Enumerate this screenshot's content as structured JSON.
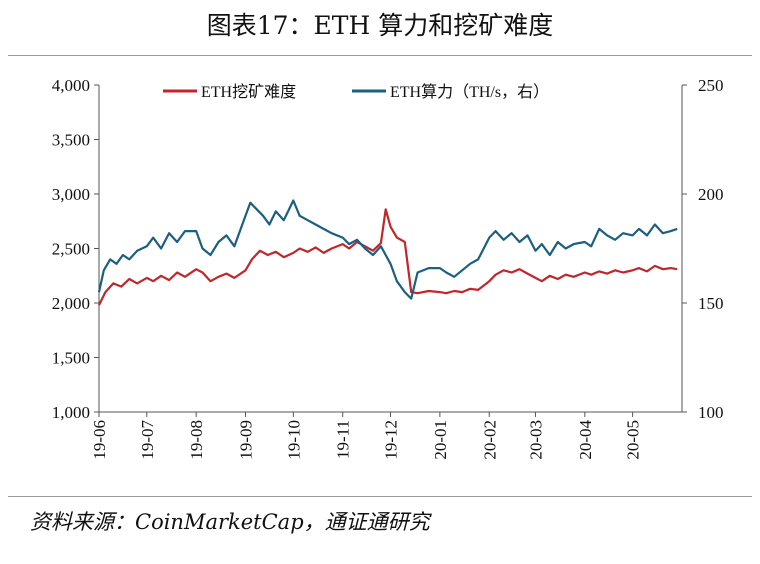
{
  "header": {
    "title": "图表17：ETH 算力和挖矿难度"
  },
  "footer": {
    "source": "资料来源：CoinMarketCap，通证通研究"
  },
  "chart_data": {
    "type": "line",
    "title": "图表17：ETH 算力和挖矿难度",
    "x_ticks": [
      "19-06",
      "19-07",
      "19-08",
      "19-09",
      "19-10",
      "19-11",
      "19-12",
      "20-01",
      "20-02",
      "20-03",
      "20-04",
      "20-05"
    ],
    "y_left": {
      "ticks": [
        "1,000",
        "1,500",
        "2,000",
        "2,500",
        "3,000",
        "3,500",
        "4,000"
      ],
      "range": [
        1000,
        4000
      ]
    },
    "y_right": {
      "ticks": [
        "100",
        "150",
        "200",
        "250"
      ],
      "range": [
        100,
        250
      ]
    },
    "legend_position": "top-center",
    "grid": false,
    "series": [
      {
        "name": "ETH挖矿难度",
        "axis": "left",
        "color": "#c0272d",
        "points": [
          [
            "19-06-01",
            1980
          ],
          [
            "19-06-05",
            2100
          ],
          [
            "19-06-10",
            2180
          ],
          [
            "19-06-15",
            2150
          ],
          [
            "19-06-20",
            2220
          ],
          [
            "19-06-25",
            2180
          ],
          [
            "19-07-01",
            2230
          ],
          [
            "19-07-05",
            2200
          ],
          [
            "19-07-10",
            2250
          ],
          [
            "19-07-15",
            2210
          ],
          [
            "19-07-20",
            2280
          ],
          [
            "19-07-25",
            2240
          ],
          [
            "19-08-01",
            2310
          ],
          [
            "19-08-05",
            2280
          ],
          [
            "19-08-10",
            2200
          ],
          [
            "19-08-15",
            2240
          ],
          [
            "19-08-20",
            2270
          ],
          [
            "19-08-25",
            2230
          ],
          [
            "19-09-01",
            2300
          ],
          [
            "19-09-05",
            2400
          ],
          [
            "19-09-10",
            2480
          ],
          [
            "19-09-15",
            2440
          ],
          [
            "19-09-20",
            2470
          ],
          [
            "19-09-25",
            2420
          ],
          [
            "19-10-01",
            2460
          ],
          [
            "19-10-05",
            2500
          ],
          [
            "19-10-10",
            2470
          ],
          [
            "19-10-15",
            2510
          ],
          [
            "19-10-20",
            2460
          ],
          [
            "19-10-25",
            2500
          ],
          [
            "19-11-01",
            2540
          ],
          [
            "19-11-05",
            2500
          ],
          [
            "19-11-10",
            2560
          ],
          [
            "19-11-15",
            2520
          ],
          [
            "19-11-20",
            2480
          ],
          [
            "19-11-25",
            2550
          ],
          [
            "19-11-28",
            2860
          ],
          [
            "19-12-01",
            2700
          ],
          [
            "19-12-05",
            2600
          ],
          [
            "19-12-10",
            2560
          ],
          [
            "19-12-14",
            2100
          ],
          [
            "19-12-18",
            2090
          ],
          [
            "19-12-25",
            2110
          ],
          [
            "20-01-01",
            2100
          ],
          [
            "20-01-05",
            2090
          ],
          [
            "20-01-10",
            2110
          ],
          [
            "20-01-15",
            2100
          ],
          [
            "20-01-20",
            2130
          ],
          [
            "20-01-25",
            2120
          ],
          [
            "20-02-01",
            2200
          ],
          [
            "20-02-05",
            2260
          ],
          [
            "20-02-10",
            2300
          ],
          [
            "20-02-15",
            2280
          ],
          [
            "20-02-20",
            2310
          ],
          [
            "20-02-25",
            2270
          ],
          [
            "20-03-01",
            2230
          ],
          [
            "20-03-05",
            2200
          ],
          [
            "20-03-10",
            2250
          ],
          [
            "20-03-15",
            2220
          ],
          [
            "20-03-20",
            2260
          ],
          [
            "20-03-25",
            2240
          ],
          [
            "20-04-01",
            2280
          ],
          [
            "20-04-05",
            2260
          ],
          [
            "20-04-10",
            2290
          ],
          [
            "20-04-15",
            2270
          ],
          [
            "20-04-20",
            2300
          ],
          [
            "20-04-25",
            2280
          ],
          [
            "20-05-01",
            2300
          ],
          [
            "20-05-05",
            2320
          ],
          [
            "20-05-10",
            2290
          ],
          [
            "20-05-15",
            2340
          ],
          [
            "20-05-20",
            2310
          ],
          [
            "20-05-25",
            2320
          ],
          [
            "20-05-29",
            2310
          ]
        ]
      },
      {
        "name": "ETH算力（TH/s，右）",
        "axis": "right",
        "color": "#1c5f80",
        "points": [
          [
            "19-06-01",
            155
          ],
          [
            "19-06-04",
            165
          ],
          [
            "19-06-08",
            170
          ],
          [
            "19-06-12",
            168
          ],
          [
            "19-06-16",
            172
          ],
          [
            "19-06-20",
            170
          ],
          [
            "19-06-25",
            174
          ],
          [
            "19-07-01",
            176
          ],
          [
            "19-07-05",
            180
          ],
          [
            "19-07-10",
            175
          ],
          [
            "19-07-15",
            182
          ],
          [
            "19-07-20",
            178
          ],
          [
            "19-07-25",
            183
          ],
          [
            "19-08-01",
            183
          ],
          [
            "19-08-05",
            175
          ],
          [
            "19-08-10",
            172
          ],
          [
            "19-08-15",
            178
          ],
          [
            "19-08-20",
            181
          ],
          [
            "19-08-25",
            176
          ],
          [
            "19-09-01",
            190
          ],
          [
            "19-09-04",
            196
          ],
          [
            "19-09-08",
            193
          ],
          [
            "19-09-12",
            190
          ],
          [
            "19-09-16",
            186
          ],
          [
            "19-09-20",
            192
          ],
          [
            "19-09-25",
            188
          ],
          [
            "19-10-01",
            197
          ],
          [
            "19-10-05",
            190
          ],
          [
            "19-10-10",
            188
          ],
          [
            "19-10-15",
            186
          ],
          [
            "19-10-20",
            184
          ],
          [
            "19-10-25",
            182
          ],
          [
            "19-11-01",
            180
          ],
          [
            "19-11-05",
            177
          ],
          [
            "19-11-10",
            179
          ],
          [
            "19-11-15",
            175
          ],
          [
            "19-11-20",
            172
          ],
          [
            "19-11-25",
            176
          ],
          [
            "19-12-01",
            168
          ],
          [
            "19-12-05",
            160
          ],
          [
            "19-12-10",
            155
          ],
          [
            "19-12-14",
            152
          ],
          [
            "19-12-18",
            164
          ],
          [
            "19-12-25",
            166
          ],
          [
            "20-01-01",
            166
          ],
          [
            "20-01-05",
            164
          ],
          [
            "20-01-10",
            162
          ],
          [
            "20-01-15",
            165
          ],
          [
            "20-01-20",
            168
          ],
          [
            "20-01-25",
            170
          ],
          [
            "20-02-01",
            180
          ],
          [
            "20-02-05",
            183
          ],
          [
            "20-02-10",
            179
          ],
          [
            "20-02-15",
            182
          ],
          [
            "20-02-20",
            178
          ],
          [
            "20-02-25",
            181
          ],
          [
            "20-03-01",
            174
          ],
          [
            "20-03-05",
            177
          ],
          [
            "20-03-10",
            172
          ],
          [
            "20-03-15",
            178
          ],
          [
            "20-03-20",
            175
          ],
          [
            "20-03-25",
            177
          ],
          [
            "20-04-01",
            178
          ],
          [
            "20-04-05",
            176
          ],
          [
            "20-04-10",
            184
          ],
          [
            "20-04-15",
            181
          ],
          [
            "20-04-20",
            179
          ],
          [
            "20-04-25",
            182
          ],
          [
            "20-05-01",
            181
          ],
          [
            "20-05-05",
            184
          ],
          [
            "20-05-10",
            181
          ],
          [
            "20-05-15",
            186
          ],
          [
            "20-05-20",
            182
          ],
          [
            "20-05-25",
            183
          ],
          [
            "20-05-29",
            184
          ]
        ]
      }
    ]
  }
}
